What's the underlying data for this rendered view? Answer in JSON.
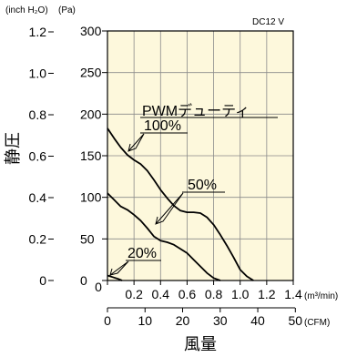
{
  "chart_data": {
    "type": "line",
    "voltage_label": "DC12 V",
    "left_unit_label": "(inch H₂O)",
    "right_unit_label": "(Pa)",
    "ylabel": "静圧",
    "xlabel": "風量",
    "x_unit_top": "(m³/min)",
    "x_unit_bottom": "(CFM)",
    "legend_title": "PWMデューティ",
    "y_pa_ticks": [
      "0",
      "50",
      "100",
      "150",
      "200",
      "250",
      "300"
    ],
    "y_inch_ticks": [
      "0",
      "0.2",
      "0.4",
      "0.6",
      "0.8",
      "1.0",
      "1.2"
    ],
    "x_m3_ticks": [
      "0",
      "0.2",
      "0.4",
      "0.6",
      "0.8",
      "1.0",
      "1.2",
      "1.4"
    ],
    "x_cfm_ticks": [
      "0",
      "10",
      "20",
      "30",
      "40",
      "50"
    ],
    "xlim": [
      0,
      1.4
    ],
    "ylim": [
      0,
      300
    ],
    "grid": true,
    "series": [
      {
        "name": "100%",
        "x": [
          0,
          0.05,
          0.1,
          0.15,
          0.2,
          0.25,
          0.3,
          0.35,
          0.4,
          0.45,
          0.5,
          0.55,
          0.6,
          0.65,
          0.7,
          0.75,
          0.8,
          0.85,
          0.9,
          0.95,
          1.0,
          1.05,
          1.1
        ],
        "y": [
          183,
          171,
          160,
          151,
          145,
          140,
          132,
          121,
          109,
          99,
          90,
          84,
          82,
          82,
          81,
          76,
          67,
          55,
          42,
          28,
          13,
          5,
          0
        ]
      },
      {
        "name": "50%",
        "x": [
          0,
          0.05,
          0.1,
          0.15,
          0.2,
          0.25,
          0.3,
          0.35,
          0.4,
          0.45,
          0.5,
          0.55,
          0.6,
          0.65,
          0.7,
          0.75,
          0.8,
          0.85
        ],
        "y": [
          105,
          97,
          89,
          85,
          79,
          72,
          63,
          53,
          48,
          46,
          43,
          38,
          33,
          25,
          17,
          9,
          3,
          0
        ]
      },
      {
        "name": "20%",
        "x": [
          0,
          0.04,
          0.08,
          0.11
        ],
        "y": [
          6,
          4,
          2,
          0
        ]
      }
    ]
  }
}
